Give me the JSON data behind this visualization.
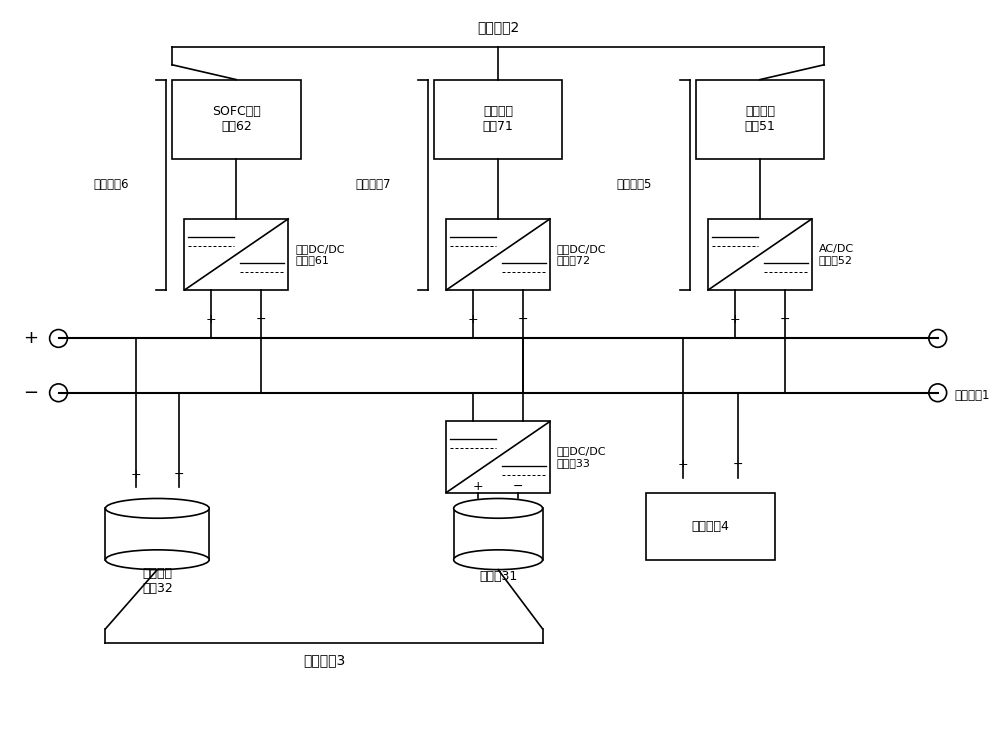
{
  "bg_color": "#ffffff",
  "line_color": "#000000",
  "font_size_large": 11,
  "font_size_medium": 9,
  "font_size_small": 8,
  "title_fadian": "发电单元2",
  "title_chuneng": "储能单元3",
  "title_zliumuxi": "直流母线1",
  "label_randan": "燃电单元6",
  "label_guangfu": "光伏单元7",
  "label_fengli": "风力单元5",
  "box_sofc": "SOFC发电\n单元62",
  "box_guangfu": "光伏发电\n单元71",
  "box_fengli": "风力发电\n单元51",
  "conv1_label": "第一DC/DC\n变换器61",
  "conv2_label": "第二DC/DC\n变换器72",
  "conv3_label": "AC/DC\n变换器52",
  "conv4_label": "双向DC/DC\n变换器33",
  "batt_label": "蓄电池31",
  "dc_source_label": "直流恒流\n电源32",
  "load_label": "负载单元4"
}
